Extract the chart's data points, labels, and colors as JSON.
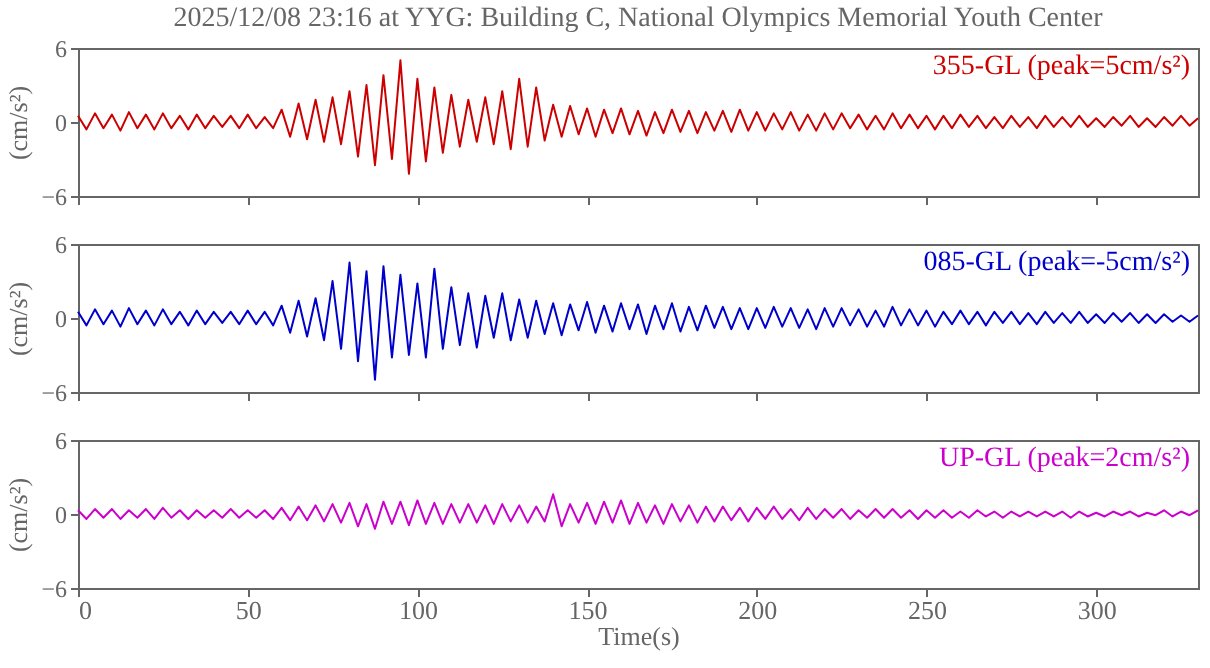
{
  "chart_data": [
    {
      "type": "line",
      "title": "2025/12/08 23:16 at YYG: Building C, National Olympics Memorial Youth Center",
      "ylabel": "(cm/s²)",
      "xlim": [
        0,
        330
      ],
      "xticks": [
        0,
        50,
        100,
        150,
        200,
        250,
        300
      ],
      "ylim": [
        -6,
        6
      ],
      "yticks": [
        -6,
        0,
        6
      ],
      "tick_labels": "y",
      "grid": false,
      "x": [
        0,
        2.5,
        5,
        7.5,
        10,
        12.5,
        15,
        17.5,
        20,
        22.5,
        25,
        27.5,
        30,
        32.5,
        35,
        37.5,
        40,
        42.5,
        45,
        47.5,
        50,
        52.5,
        55,
        57.5,
        60,
        62.5,
        65,
        67.5,
        70,
        72.5,
        75,
        77.5,
        80,
        82.5,
        85,
        87.5,
        90,
        92.5,
        95,
        97.5,
        100,
        102.5,
        105,
        107.5,
        110,
        112.5,
        115,
        117.5,
        120,
        122.5,
        125,
        127.5,
        130,
        132.5,
        135,
        137.5,
        140,
        142.5,
        145,
        147.5,
        150,
        152.5,
        155,
        157.5,
        160,
        162.5,
        165,
        167.5,
        170,
        172.5,
        175,
        177.5,
        180,
        182.5,
        185,
        187.5,
        190,
        192.5,
        195,
        197.5,
        200,
        202.5,
        205,
        207.5,
        210,
        212.5,
        215,
        217.5,
        220,
        222.5,
        225,
        227.5,
        230,
        232.5,
        235,
        237.5,
        240,
        242.5,
        245,
        247.5,
        250,
        252.5,
        255,
        257.5,
        260,
        262.5,
        265,
        267.5,
        270,
        272.5,
        275,
        277.5,
        280,
        282.5,
        285,
        287.5,
        290,
        292.5,
        295,
        297.5,
        300,
        302.5,
        305,
        307.5,
        310,
        312.5,
        315,
        317.5,
        320,
        322.5,
        325,
        327.5,
        330
      ],
      "series": [
        {
          "name": "355-GL (peak=5cm/s²)",
          "color": "#cc0000",
          "values": [
            0.5,
            -0.6,
            0.7,
            -0.5,
            0.6,
            -0.7,
            0.8,
            -0.5,
            0.6,
            -0.6,
            0.7,
            -0.5,
            0.5,
            -0.6,
            0.6,
            -0.5,
            0.5,
            -0.4,
            0.5,
            -0.5,
            0.6,
            -0.5,
            0.4,
            -0.5,
            1.0,
            -1.2,
            1.5,
            -1.4,
            1.8,
            -1.6,
            2.0,
            -1.8,
            2.5,
            -2.8,
            3.0,
            -3.5,
            3.8,
            -3.0,
            5.0,
            -4.2,
            3.5,
            -3.2,
            2.8,
            -2.5,
            2.2,
            -2.0,
            1.8,
            -1.6,
            2.0,
            -1.8,
            2.5,
            -2.2,
            3.5,
            -2.0,
            2.8,
            -1.5,
            1.4,
            -1.2,
            1.3,
            -1.0,
            1.1,
            -1.2,
            1.0,
            -0.9,
            1.1,
            -1.0,
            0.9,
            -1.1,
            0.8,
            -0.9,
            1.0,
            -0.8,
            0.9,
            -0.9,
            0.8,
            -0.7,
            0.9,
            -0.8,
            1.0,
            -0.7,
            0.8,
            -0.7,
            0.7,
            -0.6,
            0.8,
            -0.7,
            0.6,
            -0.7,
            0.7,
            -0.6,
            0.7,
            -0.5,
            0.6,
            -0.6,
            0.5,
            -0.6,
            0.7,
            -0.5,
            0.6,
            -0.5,
            0.5,
            -0.6,
            0.5,
            -0.5,
            0.6,
            -0.4,
            0.5,
            -0.5,
            0.4,
            -0.5,
            0.5,
            -0.4,
            0.4,
            -0.5,
            0.5,
            -0.4,
            0.4,
            -0.4,
            0.5,
            -0.4,
            0.3,
            -0.4,
            0.4,
            -0.3,
            0.5,
            -0.4,
            0.3,
            -0.4,
            0.4,
            -0.3,
            0.5,
            -0.3,
            0.3
          ]
        }
      ]
    },
    {
      "type": "line",
      "ylabel": "(cm/s²)",
      "xlim": [
        0,
        330
      ],
      "xticks": [
        0,
        50,
        100,
        150,
        200,
        250,
        300
      ],
      "ylim": [
        -6,
        6
      ],
      "yticks": [
        -6,
        0,
        6
      ],
      "tick_labels": "y",
      "grid": false,
      "x": [
        0,
        2.5,
        5,
        7.5,
        10,
        12.5,
        15,
        17.5,
        20,
        22.5,
        25,
        27.5,
        30,
        32.5,
        35,
        37.5,
        40,
        42.5,
        45,
        47.5,
        50,
        52.5,
        55,
        57.5,
        60,
        62.5,
        65,
        67.5,
        70,
        72.5,
        75,
        77.5,
        80,
        82.5,
        85,
        87.5,
        90,
        92.5,
        95,
        97.5,
        100,
        102.5,
        105,
        107.5,
        110,
        112.5,
        115,
        117.5,
        120,
        122.5,
        125,
        127.5,
        130,
        132.5,
        135,
        137.5,
        140,
        142.5,
        145,
        147.5,
        150,
        152.5,
        155,
        157.5,
        160,
        162.5,
        165,
        167.5,
        170,
        172.5,
        175,
        177.5,
        180,
        182.5,
        185,
        187.5,
        190,
        192.5,
        195,
        197.5,
        200,
        202.5,
        205,
        207.5,
        210,
        212.5,
        215,
        217.5,
        220,
        222.5,
        225,
        227.5,
        230,
        232.5,
        235,
        237.5,
        240,
        242.5,
        245,
        247.5,
        250,
        252.5,
        255,
        257.5,
        260,
        262.5,
        265,
        267.5,
        270,
        272.5,
        275,
        277.5,
        280,
        282.5,
        285,
        287.5,
        290,
        292.5,
        295,
        297.5,
        300,
        302.5,
        305,
        307.5,
        310,
        312.5,
        315,
        317.5,
        320,
        322.5,
        325,
        327.5,
        330
      ],
      "series": [
        {
          "name": "085-GL (peak=-5cm/s²)",
          "color": "#0000cc",
          "values": [
            0.5,
            -0.6,
            0.7,
            -0.5,
            0.6,
            -0.7,
            0.8,
            -0.5,
            0.6,
            -0.6,
            0.7,
            -0.5,
            0.5,
            -0.6,
            0.6,
            -0.5,
            0.5,
            -0.4,
            0.5,
            -0.5,
            0.6,
            -0.5,
            0.5,
            -0.6,
            1.0,
            -1.2,
            1.4,
            -1.5,
            1.6,
            -1.8,
            3.0,
            -2.5,
            4.5,
            -3.5,
            3.8,
            -5.0,
            4.2,
            -3.2,
            3.5,
            -3.0,
            2.8,
            -3.2,
            4.0,
            -2.5,
            2.5,
            -2.2,
            2.0,
            -2.4,
            1.8,
            -1.6,
            2.0,
            -1.8,
            1.5,
            -1.6,
            1.4,
            -1.3,
            1.2,
            -1.4,
            1.1,
            -1.0,
            1.3,
            -1.2,
            1.0,
            -1.1,
            1.2,
            -0.9,
            1.1,
            -1.3,
            1.0,
            -0.9,
            1.2,
            -1.1,
            0.9,
            -1.0,
            1.0,
            -0.8,
            0.9,
            -0.9,
            0.8,
            -0.9,
            0.8,
            -0.8,
            0.9,
            -0.7,
            0.8,
            -0.8,
            0.7,
            -0.9,
            0.8,
            -0.7,
            0.8,
            -0.6,
            0.7,
            -0.7,
            0.6,
            -0.7,
            0.9,
            -0.6,
            0.7,
            -0.6,
            0.6,
            -0.7,
            0.5,
            -0.5,
            0.6,
            -0.5,
            0.5,
            -0.6,
            0.5,
            -0.4,
            0.5,
            -0.5,
            0.4,
            -0.5,
            0.5,
            -0.4,
            0.4,
            -0.4,
            0.5,
            -0.4,
            0.3,
            -0.4,
            0.4,
            -0.3,
            0.4,
            -0.4,
            0.3,
            -0.4,
            0.3,
            -0.3,
            0.2,
            -0.3,
            0.2
          ]
        }
      ]
    },
    {
      "type": "line",
      "xlabel": "Time(s)",
      "ylabel": "(cm/s²)",
      "xlim": [
        0,
        330
      ],
      "xticks": [
        0,
        50,
        100,
        150,
        200,
        250,
        300
      ],
      "ylim": [
        -6,
        6
      ],
      "yticks": [
        -6,
        0,
        6
      ],
      "grid": false,
      "x": [
        0,
        2.5,
        5,
        7.5,
        10,
        12.5,
        15,
        17.5,
        20,
        22.5,
        25,
        27.5,
        30,
        32.5,
        35,
        37.5,
        40,
        42.5,
        45,
        47.5,
        50,
        52.5,
        55,
        57.5,
        60,
        62.5,
        65,
        67.5,
        70,
        72.5,
        75,
        77.5,
        80,
        82.5,
        85,
        87.5,
        90,
        92.5,
        95,
        97.5,
        100,
        102.5,
        105,
        107.5,
        110,
        112.5,
        115,
        117.5,
        120,
        122.5,
        125,
        127.5,
        130,
        132.5,
        135,
        137.5,
        140,
        142.5,
        145,
        147.5,
        150,
        152.5,
        155,
        157.5,
        160,
        162.5,
        165,
        167.5,
        170,
        172.5,
        175,
        177.5,
        180,
        182.5,
        185,
        187.5,
        190,
        192.5,
        195,
        197.5,
        200,
        202.5,
        205,
        207.5,
        210,
        212.5,
        215,
        217.5,
        220,
        222.5,
        225,
        227.5,
        230,
        232.5,
        235,
        237.5,
        240,
        242.5,
        245,
        247.5,
        250,
        252.5,
        255,
        257.5,
        260,
        262.5,
        265,
        267.5,
        270,
        272.5,
        275,
        277.5,
        280,
        282.5,
        285,
        287.5,
        290,
        292.5,
        295,
        297.5,
        300,
        302.5,
        305,
        307.5,
        310,
        312.5,
        315,
        317.5,
        320,
        322.5,
        325,
        327.5,
        330
      ],
      "series": [
        {
          "name": "UP-GL (peak=2cm/s²)",
          "color": "#cc00cc",
          "values": [
            0.3,
            -0.4,
            0.4,
            -0.3,
            0.4,
            -0.4,
            0.3,
            -0.3,
            0.4,
            -0.4,
            0.5,
            -0.3,
            0.3,
            -0.4,
            0.3,
            -0.3,
            0.3,
            -0.3,
            0.4,
            -0.3,
            0.3,
            -0.3,
            0.3,
            -0.4,
            0.5,
            -0.5,
            0.6,
            -0.5,
            0.7,
            -0.6,
            0.8,
            -0.7,
            0.9,
            -1.0,
            0.8,
            -1.2,
            1.0,
            -0.8,
            1.0,
            -0.9,
            1.1,
            -0.8,
            0.9,
            -0.8,
            0.8,
            -0.7,
            0.8,
            -0.7,
            0.7,
            -0.8,
            0.8,
            -0.6,
            0.7,
            -0.7,
            0.6,
            -0.6,
            1.6,
            -1.0,
            0.8,
            -0.7,
            0.9,
            -0.8,
            1.0,
            -0.7,
            1.1,
            -0.8,
            0.9,
            -0.7,
            0.7,
            -0.8,
            0.8,
            -0.6,
            0.7,
            -0.7,
            0.6,
            -0.6,
            0.6,
            -0.5,
            0.5,
            -0.6,
            0.5,
            -0.4,
            0.6,
            -0.4,
            0.4,
            -0.5,
            0.5,
            -0.4,
            0.4,
            -0.3,
            0.4,
            -0.4,
            0.3,
            -0.3,
            0.4,
            -0.3,
            0.4,
            -0.3,
            0.3,
            -0.4,
            0.3,
            -0.3,
            0.3,
            -0.3,
            0.2,
            -0.3,
            0.3,
            -0.2,
            0.2,
            -0.3,
            0.2,
            -0.2,
            0.2,
            -0.2,
            0.2,
            -0.2,
            0.2,
            -0.3,
            0.2,
            -0.2,
            0.1,
            -0.2,
            0.2,
            -0.1,
            0.2,
            -0.2,
            0.1,
            -0.1,
            0.3,
            -0.2,
            0.2,
            -0.1,
            0.3
          ]
        }
      ]
    }
  ]
}
